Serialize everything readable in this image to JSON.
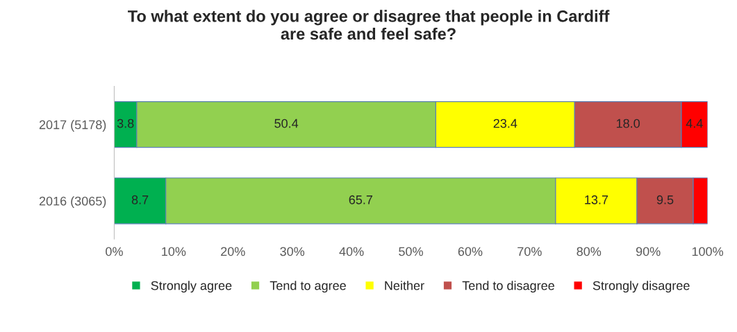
{
  "chart_data": {
    "type": "bar",
    "orientation": "horizontal",
    "stacked": true,
    "title": "To what extent do you agree or disagree that people in Cardiff\nare safe and feel safe?",
    "categories": [
      "2017 (5178)",
      "2016 (3065)"
    ],
    "series": [
      {
        "name": "Strongly agree",
        "color": "#00b050",
        "values": [
          3.8,
          8.7
        ],
        "value_labels": [
          "3.8",
          "8.7"
        ]
      },
      {
        "name": "Tend to agree",
        "color": "#92d050",
        "values": [
          50.4,
          65.7
        ],
        "value_labels": [
          "50.4",
          "65.7"
        ]
      },
      {
        "name": "Neither",
        "color": "#ffff00",
        "values": [
          23.4,
          13.7
        ],
        "value_labels": [
          "23.4",
          "13.7"
        ]
      },
      {
        "name": "Tend to disagree",
        "color": "#c0504d",
        "values": [
          18.0,
          9.5
        ],
        "value_labels": [
          "18.0",
          "9.5"
        ]
      },
      {
        "name": "Strongly disagree",
        "color": "#ff0000",
        "values": [
          4.4,
          2.4
        ],
        "value_labels": [
          "4.4",
          null
        ]
      }
    ],
    "xlim": [
      0,
      100
    ],
    "xticks": [
      {
        "value": 0,
        "label": "0%"
      },
      {
        "value": 10,
        "label": "10%"
      },
      {
        "value": 20,
        "label": "20%"
      },
      {
        "value": 30,
        "label": "30%"
      },
      {
        "value": 40,
        "label": "40%"
      },
      {
        "value": 50,
        "label": "50%"
      },
      {
        "value": 60,
        "label": "60%"
      },
      {
        "value": 70,
        "label": "70%"
      },
      {
        "value": 80,
        "label": "80%"
      },
      {
        "value": 90,
        "label": "90%"
      },
      {
        "value": 100,
        "label": "100%"
      }
    ],
    "grid": false,
    "legend": "bottom"
  }
}
